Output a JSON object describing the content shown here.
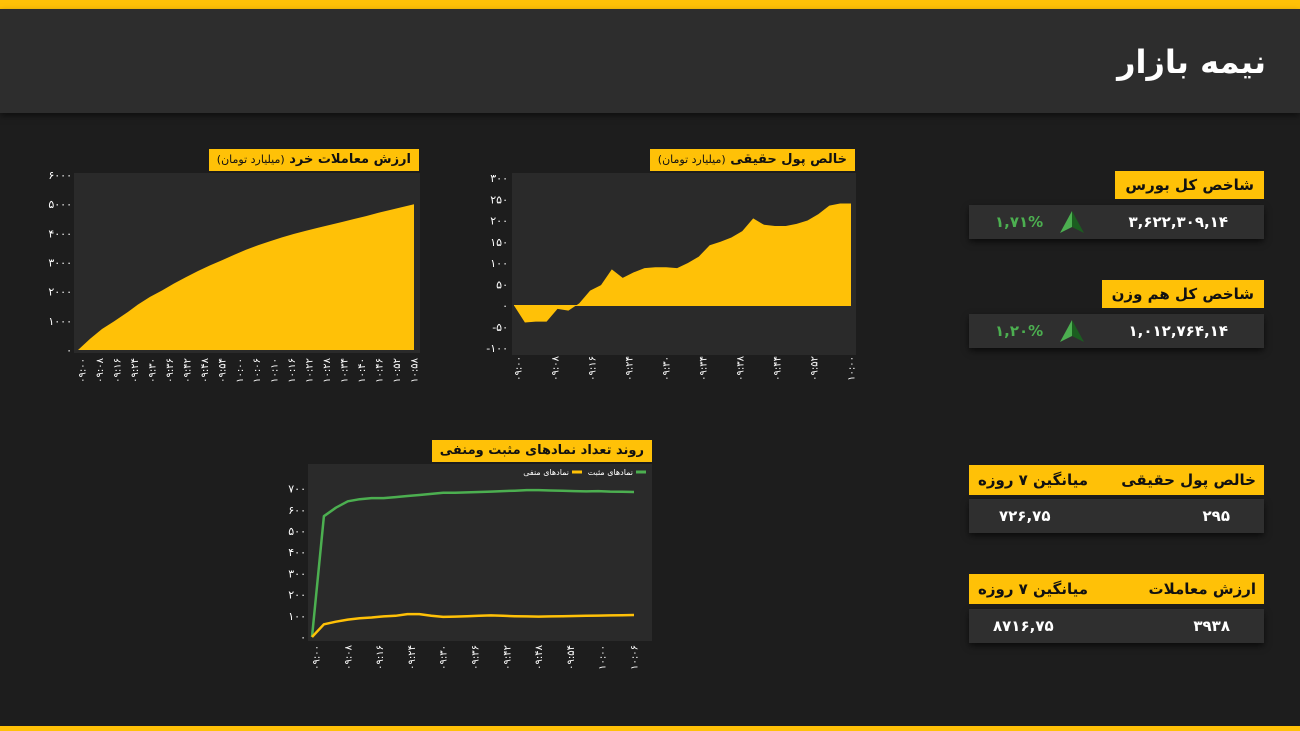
{
  "header": {
    "title": "نیمه بازار"
  },
  "colors": {
    "accent": "#ffc107",
    "positive": "#4caf50",
    "panel": "#2f2f2f",
    "background": "#1d1d1d"
  },
  "index_total": {
    "label": "شاخص کل بورس",
    "value": "۳,۶۲۲,۳۰۹,۱۴",
    "change": "۱,۷۱%",
    "icon": "arrow-up-icon"
  },
  "index_equal": {
    "label": "شاخص کل هم وزن",
    "value": "۱,۰۱۲,۷۶۴,۱۴",
    "change": "۱,۲۰%",
    "icon": "arrow-up-icon"
  },
  "net_money": {
    "label": "خالص پول حقیقی",
    "avg_label": "میانگین ۷ روزه",
    "value": "۲۹۵",
    "avg_value": "۷۲۶,۷۵"
  },
  "trade_value": {
    "label": "ارزش معاملات",
    "avg_label": "میانگین ۷ روزه",
    "value": "۳۹۳۸",
    "avg_value": "۸۷۱۶,۷۵"
  },
  "chart_data": [
    {
      "type": "area",
      "title": "ارزش معاملات خرد",
      "subtitle": "(میلیارد تومان)",
      "ylim": [
        0,
        6000
      ],
      "y_ticks": [
        0,
        1000,
        2000,
        3000,
        4000,
        5000,
        6000
      ],
      "y_tick_labels": [
        "۰",
        "۱۰۰۰",
        "۲۰۰۰",
        "۳۰۰۰",
        "۴۰۰۰",
        "۵۰۰۰",
        "۶۰۰۰"
      ],
      "x_tick_labels": [
        "۰۹:۰۰",
        "۰۹:۰۸",
        "۰۹:۱۶",
        "۰۹:۲۴",
        "۰۹:۳۰",
        "۰۹:۳۶",
        "۰۹:۴۲",
        "۰۹:۴۸",
        "۰۹:۵۴",
        "۱۰:۰۰",
        "۱۰:۰۶",
        "۱۰:۱۰",
        "۱۰:۱۶",
        "۱۰:۲۲",
        "۱۰:۲۸",
        "۱۰:۳۴",
        "۱۰:۴۰",
        "۱۰:۴۶",
        "۱۰:۵۲",
        "۱۰:۵۸"
      ],
      "series": [
        {
          "values": [
            0,
            380,
            720,
            980,
            1260,
            1560,
            1820,
            2040,
            2280,
            2500,
            2710,
            2900,
            3080,
            3260,
            3440,
            3590,
            3730,
            3860,
            3980,
            4090,
            4190,
            4290,
            4390,
            4490,
            4590,
            4700,
            4800,
            4900,
            5000
          ]
        }
      ],
      "grid": false
    },
    {
      "type": "area",
      "title": "خالص پول حقیقی",
      "subtitle": "(میلیارد تومان)",
      "ylim": [
        -100,
        300
      ],
      "y_ticks": [
        -100,
        -50,
        0,
        50,
        100,
        150,
        200,
        250,
        300
      ],
      "y_tick_labels": [
        "-۱۰۰",
        "-۵۰",
        "۰",
        "۵۰",
        "۱۰۰",
        "۱۵۰",
        "۲۰۰",
        "۲۵۰",
        "۳۰۰"
      ],
      "x_tick_labels": [
        "۰۹:۰۰",
        "۰۹:۰۸",
        "۰۹:۱۶",
        "۰۹:۲۴",
        "۰۹:۳۰",
        "۰۹:۳۴",
        "۰۹:۳۸",
        "۰۹:۴۴",
        "۰۹:۵۲",
        "۱۰:۰۰"
      ],
      "series": [
        {
          "values": [
            0,
            -40,
            -38,
            -38,
            -8,
            -12,
            5,
            35,
            48,
            85,
            65,
            78,
            88,
            90,
            90,
            88,
            100,
            115,
            142,
            150,
            160,
            175,
            205,
            190,
            187,
            187,
            192,
            200,
            215,
            235,
            240,
            240
          ]
        }
      ],
      "grid": false
    },
    {
      "type": "line",
      "title": "روند تعداد نمادهای مثبت ومنفی",
      "ylim": [
        0,
        750
      ],
      "y_ticks": [
        0,
        100,
        200,
        300,
        400,
        500,
        600,
        700
      ],
      "y_tick_labels": [
        "۰",
        "۱۰۰",
        "۲۰۰",
        "۳۰۰",
        "۴۰۰",
        "۵۰۰",
        "۶۰۰",
        "۷۰۰"
      ],
      "x_tick_labels": [
        "۰۹:۰۰",
        "۰۹:۰۸",
        "۰۹:۱۶",
        "۰۹:۲۴",
        "۰۹:۳۰",
        "۰۹:۳۶",
        "۰۹:۴۲",
        "۰۹:۴۸",
        "۰۹:۵۴",
        "۱۰:۰۰",
        "۱۰:۰۶"
      ],
      "legend": "top-right",
      "series": [
        {
          "name": "نمادهای مثبت",
          "color": "#4caf50",
          "values": [
            0,
            570,
            610,
            640,
            650,
            655,
            655,
            660,
            665,
            670,
            675,
            680,
            680,
            682,
            684,
            686,
            688,
            690,
            693,
            693,
            691,
            690,
            688,
            687,
            688,
            686,
            685,
            684
          ]
        },
        {
          "name": "نمادهای منفی",
          "color": "#ffc107",
          "values": [
            0,
            60,
            72,
            82,
            88,
            92,
            97,
            100,
            108,
            108,
            100,
            95,
            96,
            98,
            100,
            102,
            100,
            98,
            97,
            96,
            97,
            98,
            99,
            100,
            101,
            102,
            103,
            104
          ]
        }
      ],
      "grid": false
    }
  ]
}
